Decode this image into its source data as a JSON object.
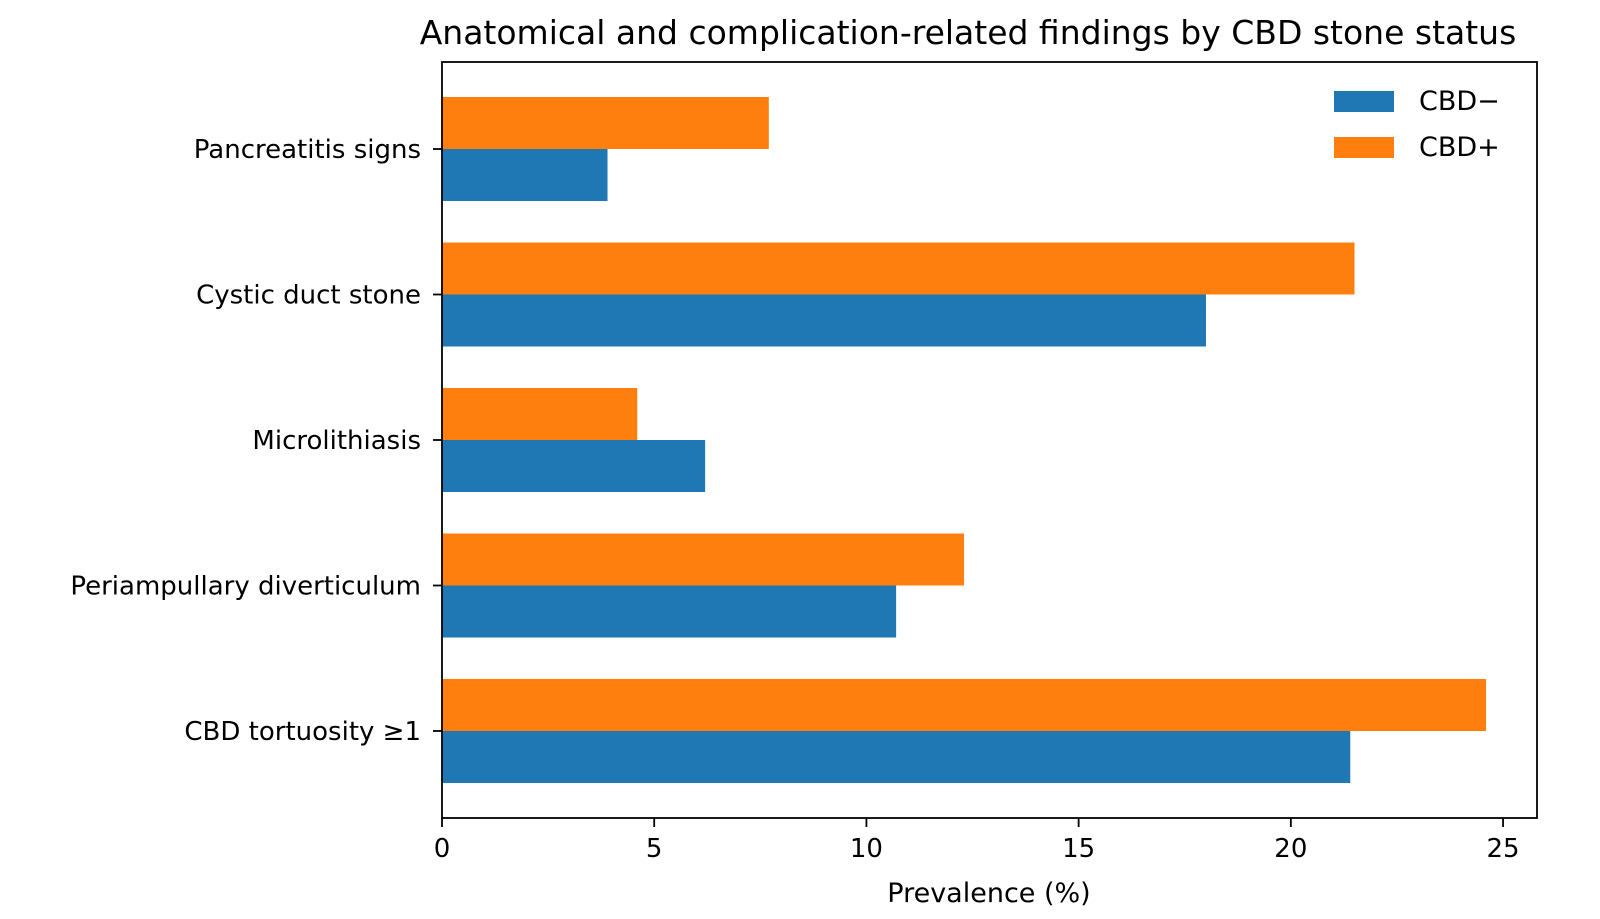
{
  "chart_data": {
    "type": "bar",
    "orientation": "horizontal",
    "title": "Anatomical and complication-related findings by CBD stone status",
    "xlabel": "Prevalence (%)",
    "ylabel": "",
    "xlim": [
      0,
      25.8
    ],
    "xticks": [
      0,
      5,
      10,
      15,
      20,
      25
    ],
    "grid": false,
    "legend_position": "top-right",
    "categories": [
      "Pancreatitis signs",
      "Cystic duct stone",
      "Microlithiasis",
      "Periampullary diverticulum",
      "CBD tortuosity ≥1"
    ],
    "series": [
      {
        "name": "CBD−",
        "color": "#1f77b4",
        "values": [
          3.9,
          18.0,
          6.2,
          10.7,
          21.4
        ]
      },
      {
        "name": "CBD+",
        "color": "#ff7f0e",
        "values": [
          7.7,
          21.5,
          4.6,
          12.3,
          24.6
        ]
      }
    ]
  }
}
